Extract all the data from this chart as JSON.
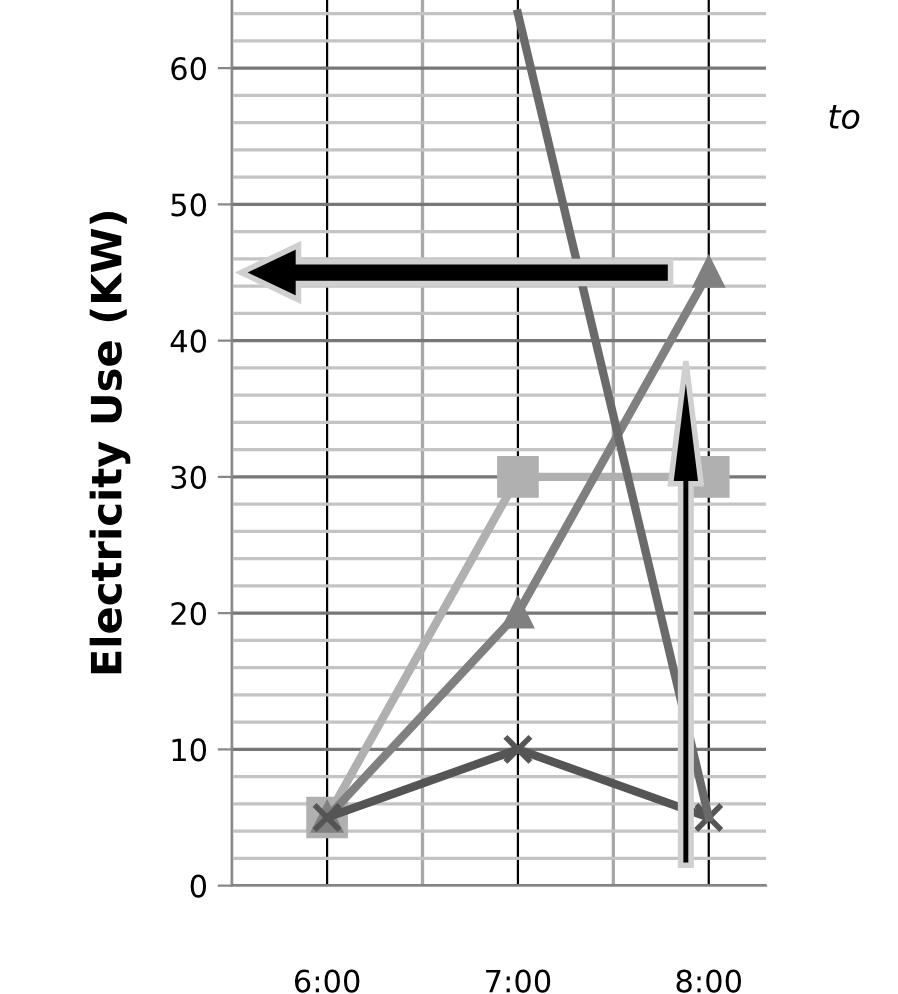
{
  "chart_data": {
    "type": "line",
    "ylabel": "Electricity Use (KW)",
    "x": [
      6,
      7,
      8
    ],
    "xlim": [
      5.5,
      8.3
    ],
    "xticks": [
      {
        "value": 5.5,
        "label": null
      },
      {
        "value": 6,
        "label": "6:00"
      },
      {
        "value": 6.5,
        "label": null
      },
      {
        "value": 7,
        "label": "7:00"
      },
      {
        "value": 7.5,
        "label": null
      },
      {
        "value": 8,
        "label": "8:00"
      }
    ],
    "ylim": [
      0,
      65
    ],
    "yticks": [
      0,
      10,
      20,
      30,
      40,
      50,
      60
    ],
    "grid": true,
    "series": [
      {
        "color": "#b0b0b0",
        "marker": "square",
        "values": [
          5,
          30,
          30
        ]
      },
      {
        "color": "#808080",
        "marker": "triangle",
        "values": [
          5,
          20,
          45
        ]
      },
      {
        "color": "#555555",
        "marker": "cross",
        "values": [
          5,
          10,
          5
        ]
      },
      {
        "color": "#6a6a6a",
        "marker": "none",
        "x": [
          7,
          8
        ],
        "values": [
          64,
          5
        ]
      }
    ],
    "annotations": [
      "to"
    ]
  }
}
